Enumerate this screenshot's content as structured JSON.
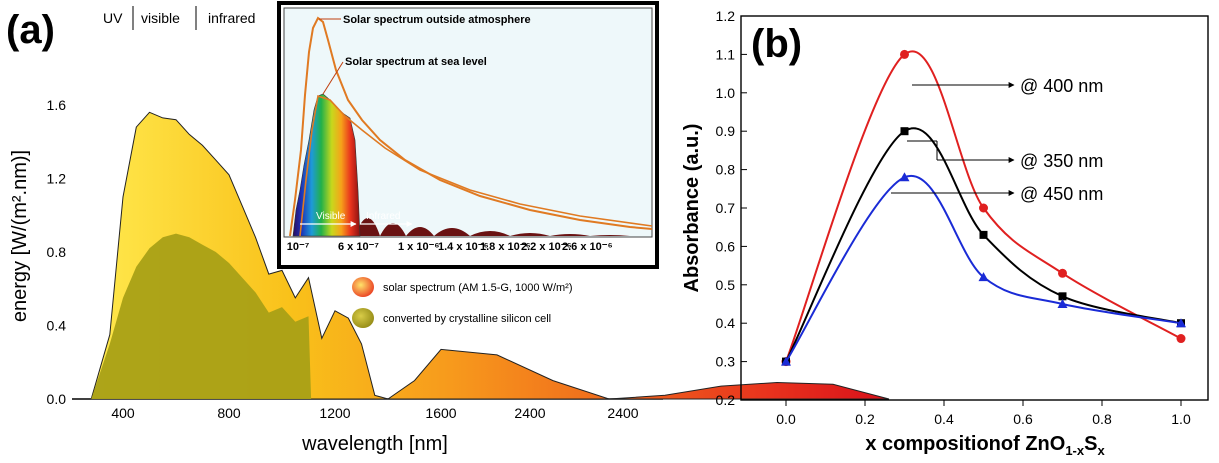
{
  "panel_a": {
    "label": "(a)",
    "bands": [
      "UV",
      "visible",
      "infrared"
    ],
    "ylabel": "energy [W/(m².nm)]",
    "xlabel": "wavelength [nm]",
    "legend": [
      {
        "label": "solar spectrum (AM 1.5-G, 1000 W/m²)",
        "color": "#e8421e"
      },
      {
        "label": "converted by crystalline silicon cell",
        "color": "#a9a016"
      }
    ],
    "inset": {
      "labels": {
        "outside": "Solar spectrum outside atmosphere",
        "sea_level": "Solar spectrum at sea level",
        "visible": "Visible",
        "infrared": "Infrared"
      },
      "xticks": [
        "10⁻⁷",
        "6 x 10⁻⁷",
        "1 x 10⁻⁶",
        "1.4 x 10⁻⁶",
        "1.8 x 10⁻⁶",
        "2.2 x 10⁻⁶",
        "2.6 x 10⁻⁶"
      ]
    }
  },
  "panel_b": {
    "label": "(b)",
    "annotations": [
      "@ 400 nm",
      "@ 350 nm",
      "@ 450 nm"
    ]
  },
  "chart_data": [
    {
      "type": "area",
      "xlabel": "wavelength [nm]",
      "ylabel": "energy [W/(m².nm)]",
      "xticks": [
        "400",
        "800",
        "1200",
        "1600",
        "2400",
        "2400"
      ],
      "yticks": [
        "0.0",
        "0.4",
        "0.8",
        "1.2",
        "1.6"
      ],
      "ylim": [
        0,
        1.6
      ],
      "series": [
        {
          "name": "solar spectrum (AM 1.5-G, 1000 W/m²)",
          "x": [
            280,
            350,
            400,
            450,
            500,
            550,
            600,
            650,
            700,
            750,
            800,
            850,
            900,
            950,
            1000,
            1050,
            1100,
            1150,
            1200,
            1250,
            1300,
            1350,
            1400,
            1500,
            1600,
            1700,
            1800,
            1900,
            2000,
            2100,
            2200,
            2300,
            2400
          ],
          "values": [
            0,
            0.35,
            1.1,
            1.48,
            1.56,
            1.53,
            1.52,
            1.44,
            1.38,
            1.3,
            1.22,
            1.05,
            0.88,
            0.68,
            0.7,
            0.55,
            0.66,
            0.33,
            0.48,
            0.44,
            0.3,
            0.02,
            0.0,
            0.1,
            0.27,
            0.24,
            0.1,
            0.0,
            0.02,
            0.07,
            0.09,
            0.08,
            0.0
          ]
        },
        {
          "name": "converted by crystalline silicon cell",
          "x": [
            280,
            350,
            400,
            450,
            500,
            550,
            600,
            650,
            700,
            750,
            800,
            850,
            900,
            950,
            1000,
            1050,
            1100,
            1110
          ],
          "values": [
            0,
            0.3,
            0.55,
            0.72,
            0.82,
            0.88,
            0.9,
            0.88,
            0.84,
            0.8,
            0.74,
            0.66,
            0.58,
            0.47,
            0.5,
            0.42,
            0.45,
            0
          ]
        }
      ]
    },
    {
      "type": "line",
      "xlabel": "x compositionof ZnO",
      "xlabel_sub1": "1-x",
      "xlabel_mid": "S",
      "xlabel_sub2": "x",
      "ylabel": "Absorbance (a.u.)",
      "xlim": [
        -0.1,
        1.05
      ],
      "ylim": [
        0.2,
        1.2
      ],
      "xticks": [
        "0.0",
        "0.2",
        "0.4",
        "0.6",
        "0.8",
        "1.0"
      ],
      "yticks": [
        "0.2",
        "0.3",
        "0.4",
        "0.5",
        "0.6",
        "0.7",
        "0.8",
        "0.9",
        "1.0",
        "1.1",
        "1.2"
      ],
      "x": [
        0.0,
        0.3,
        0.5,
        0.7,
        1.0
      ],
      "series": [
        {
          "name": "@ 400 nm",
          "values": [
            0.3,
            1.1,
            0.7,
            0.53,
            0.36
          ],
          "color": "#e02020",
          "marker": "circle"
        },
        {
          "name": "@ 350 nm",
          "values": [
            0.3,
            0.9,
            0.63,
            0.47,
            0.4
          ],
          "color": "#000000",
          "marker": "square"
        },
        {
          "name": "@ 450 nm",
          "values": [
            0.3,
            0.78,
            0.52,
            0.45,
            0.4
          ],
          "color": "#1a2bd6",
          "marker": "triangle"
        }
      ]
    }
  ]
}
